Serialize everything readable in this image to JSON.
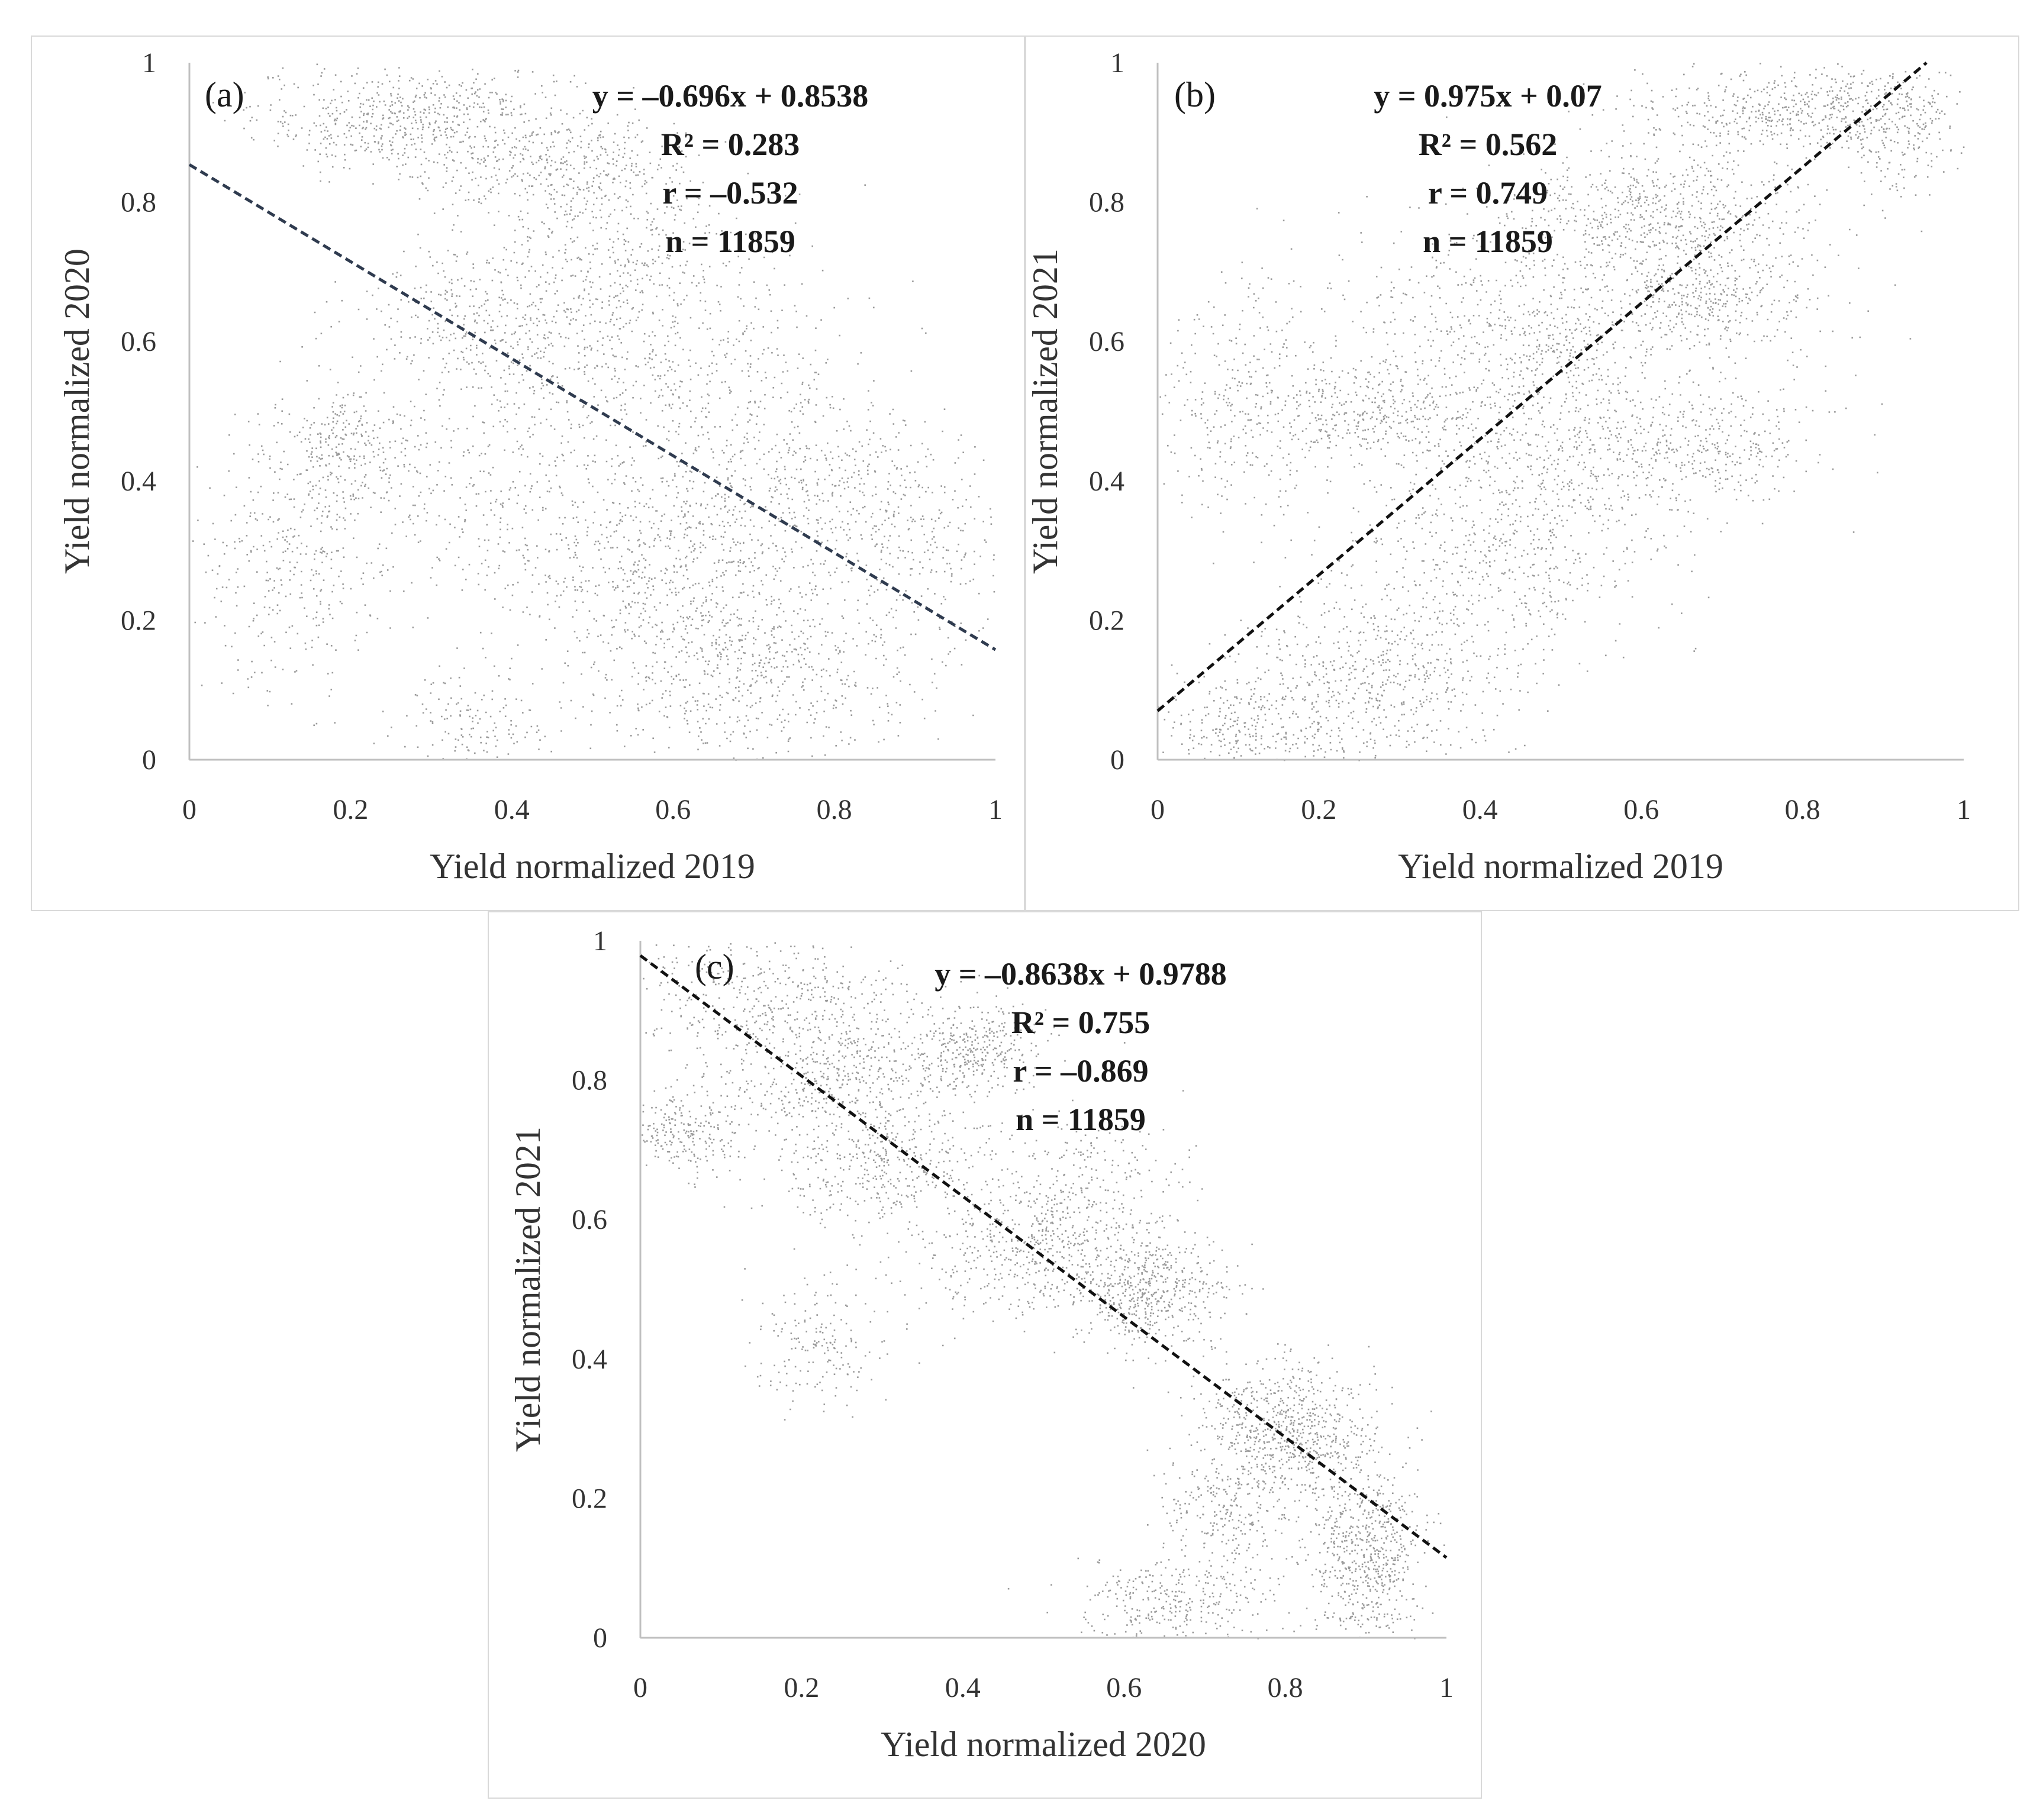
{
  "colors": {
    "point": "#9a9a9a",
    "axis": "#bfbfbf",
    "trend_a": "#2f3b4f",
    "trend": "#111111",
    "text": "#1a1a1a"
  },
  "chart_data": [
    {
      "id": "a",
      "type": "scatter",
      "panel_label": "(a)",
      "xlabel": "Yield normalized 2019",
      "ylabel": "Yield normalized 2020",
      "xlim": [
        0,
        1
      ],
      "ylim": [
        0,
        1
      ],
      "x_ticks": [
        "0",
        "0.2",
        "0.4",
        "0.6",
        "0.8",
        "1"
      ],
      "y_ticks": [
        "0",
        "0.2",
        "0.4",
        "0.6",
        "0.8",
        "1"
      ],
      "grid": false,
      "trendline": {
        "slope": -0.696,
        "intercept": 0.8538,
        "style": "dashed"
      },
      "stats": [
        "y = –0.696x + 0.8538",
        "R² = 0.283",
        "r = –0.532",
        "n = 11859"
      ],
      "n": 11859,
      "clusters": [
        {
          "cx": 0.28,
          "cy": 0.92,
          "sx": 0.1,
          "sy": 0.04,
          "w": 0.12
        },
        {
          "cx": 0.48,
          "cy": 0.84,
          "sx": 0.08,
          "sy": 0.04,
          "w": 0.07
        },
        {
          "cx": 0.38,
          "cy": 0.64,
          "sx": 0.09,
          "sy": 0.06,
          "w": 0.08
        },
        {
          "cx": 0.6,
          "cy": 0.55,
          "sx": 0.12,
          "sy": 0.07,
          "w": 0.09
        },
        {
          "cx": 0.2,
          "cy": 0.45,
          "sx": 0.05,
          "sy": 0.05,
          "w": 0.05
        },
        {
          "cx": 0.12,
          "cy": 0.28,
          "sx": 0.06,
          "sy": 0.1,
          "w": 0.06
        },
        {
          "cx": 0.62,
          "cy": 0.28,
          "sx": 0.1,
          "sy": 0.08,
          "w": 0.12
        },
        {
          "cx": 0.7,
          "cy": 0.12,
          "sx": 0.1,
          "sy": 0.06,
          "w": 0.1
        },
        {
          "cx": 0.78,
          "cy": 0.4,
          "sx": 0.08,
          "sy": 0.05,
          "w": 0.06
        },
        {
          "cx": 0.4,
          "cy": 0.35,
          "sx": 0.12,
          "sy": 0.1,
          "w": 0.08
        },
        {
          "cx": 0.55,
          "cy": 0.72,
          "sx": 0.1,
          "sy": 0.05,
          "w": 0.05
        },
        {
          "cx": 0.35,
          "cy": 0.05,
          "sx": 0.05,
          "sy": 0.04,
          "w": 0.03
        },
        {
          "cx": 0.9,
          "cy": 0.3,
          "sx": 0.05,
          "sy": 0.08,
          "w": 0.04
        }
      ]
    },
    {
      "id": "b",
      "type": "scatter",
      "panel_label": "(b)",
      "xlabel": "Yield normalized 2019",
      "ylabel": "Yield normalized 2021",
      "xlim": [
        0,
        1
      ],
      "ylim": [
        0,
        1
      ],
      "x_ticks": [
        "0",
        "0.2",
        "0.4",
        "0.6",
        "0.8",
        "1"
      ],
      "y_ticks": [
        "0",
        "0.2",
        "0.4",
        "0.6",
        "0.8",
        "1"
      ],
      "grid": false,
      "trendline": {
        "slope": 0.975,
        "intercept": 0.07,
        "style": "dashed"
      },
      "stats": [
        "y = 0.975x + 0.07",
        "R² = 0.562",
        "r = 0.749",
        "n = 11859"
      ],
      "n": 11859,
      "clusters": [
        {
          "cx": 0.8,
          "cy": 0.93,
          "sx": 0.1,
          "sy": 0.03,
          "w": 0.1
        },
        {
          "cx": 0.62,
          "cy": 0.78,
          "sx": 0.1,
          "sy": 0.05,
          "w": 0.12
        },
        {
          "cx": 0.68,
          "cy": 0.66,
          "sx": 0.07,
          "sy": 0.04,
          "w": 0.07
        },
        {
          "cx": 0.28,
          "cy": 0.5,
          "sx": 0.09,
          "sy": 0.04,
          "w": 0.08
        },
        {
          "cx": 0.1,
          "cy": 0.52,
          "sx": 0.05,
          "sy": 0.1,
          "w": 0.05
        },
        {
          "cx": 0.42,
          "cy": 0.3,
          "sx": 0.1,
          "sy": 0.08,
          "w": 0.1
        },
        {
          "cx": 0.27,
          "cy": 0.12,
          "sx": 0.08,
          "sy": 0.07,
          "w": 0.1
        },
        {
          "cx": 0.12,
          "cy": 0.05,
          "sx": 0.06,
          "sy": 0.04,
          "w": 0.05
        },
        {
          "cx": 0.55,
          "cy": 0.45,
          "sx": 0.1,
          "sy": 0.06,
          "w": 0.08
        },
        {
          "cx": 0.7,
          "cy": 0.45,
          "sx": 0.06,
          "sy": 0.04,
          "w": 0.04
        },
        {
          "cx": 0.4,
          "cy": 0.65,
          "sx": 0.1,
          "sy": 0.07,
          "w": 0.06
        },
        {
          "cx": 0.92,
          "cy": 0.9,
          "sx": 0.04,
          "sy": 0.05,
          "w": 0.03
        },
        {
          "cx": 0.5,
          "cy": 0.58,
          "sx": 0.05,
          "sy": 0.05,
          "w": 0.04
        }
      ]
    },
    {
      "id": "c",
      "type": "scatter",
      "panel_label": "(c)",
      "xlabel": "Yield normalized 2020",
      "ylabel": "Yield normalized 2021",
      "xlim": [
        0,
        1
      ],
      "ylim": [
        0,
        1
      ],
      "x_ticks": [
        "0",
        "0.2",
        "0.4",
        "0.6",
        "0.8",
        "1"
      ],
      "y_ticks": [
        "0",
        "0.2",
        "0.4",
        "0.6",
        "0.8",
        "1"
      ],
      "grid": false,
      "trendline": {
        "slope": -0.8638,
        "intercept": 0.9788,
        "style": "dashed"
      },
      "stats": [
        "y = –0.8638x + 0.9788",
        "R² = 0.755",
        "r = –0.869",
        "n = 11859"
      ],
      "n": 11859,
      "clusters": [
        {
          "cx": 0.15,
          "cy": 0.92,
          "sx": 0.1,
          "sy": 0.05,
          "w": 0.08
        },
        {
          "cx": 0.25,
          "cy": 0.8,
          "sx": 0.08,
          "sy": 0.05,
          "w": 0.1
        },
        {
          "cx": 0.42,
          "cy": 0.85,
          "sx": 0.04,
          "sy": 0.03,
          "w": 0.05
        },
        {
          "cx": 0.05,
          "cy": 0.73,
          "sx": 0.04,
          "sy": 0.03,
          "w": 0.04
        },
        {
          "cx": 0.3,
          "cy": 0.67,
          "sx": 0.07,
          "sy": 0.04,
          "w": 0.06
        },
        {
          "cx": 0.48,
          "cy": 0.55,
          "sx": 0.07,
          "sy": 0.05,
          "w": 0.08
        },
        {
          "cx": 0.63,
          "cy": 0.5,
          "sx": 0.05,
          "sy": 0.04,
          "w": 0.09
        },
        {
          "cx": 0.8,
          "cy": 0.3,
          "sx": 0.05,
          "sy": 0.05,
          "w": 0.12
        },
        {
          "cx": 0.9,
          "cy": 0.12,
          "sx": 0.04,
          "sy": 0.07,
          "w": 0.12
        },
        {
          "cx": 0.65,
          "cy": 0.05,
          "sx": 0.06,
          "sy": 0.03,
          "w": 0.05
        },
        {
          "cx": 0.22,
          "cy": 0.42,
          "sx": 0.04,
          "sy": 0.05,
          "w": 0.03
        },
        {
          "cx": 0.72,
          "cy": 0.18,
          "sx": 0.04,
          "sy": 0.05,
          "w": 0.04
        },
        {
          "cx": 0.55,
          "cy": 0.65,
          "sx": 0.06,
          "sy": 0.05,
          "w": 0.04
        }
      ]
    }
  ]
}
